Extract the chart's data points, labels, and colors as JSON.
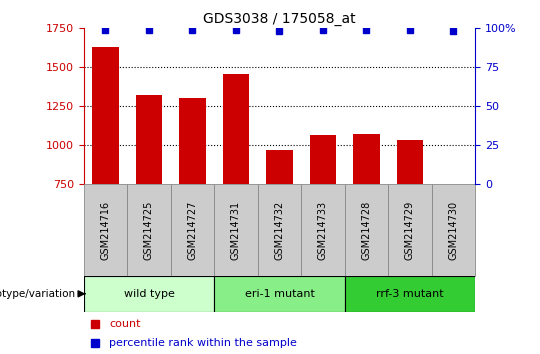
{
  "title": "GDS3038 / 175058_at",
  "samples": [
    "GSM214716",
    "GSM214725",
    "GSM214727",
    "GSM214731",
    "GSM214732",
    "GSM214733",
    "GSM214728",
    "GSM214729",
    "GSM214730"
  ],
  "counts": [
    1630,
    1320,
    1305,
    1455,
    970,
    1065,
    1070,
    1030,
    750
  ],
  "percentile_ranks": [
    99,
    99,
    99,
    99,
    98,
    99,
    99,
    99,
    98
  ],
  "groups": [
    {
      "label": "wild type",
      "start": 0,
      "end": 3,
      "color": "#ccffcc"
    },
    {
      "label": "eri-1 mutant",
      "start": 3,
      "end": 6,
      "color": "#88ee88"
    },
    {
      "label": "rrf-3 mutant",
      "start": 6,
      "end": 9,
      "color": "#33cc33"
    }
  ],
  "ylim": [
    750,
    1750
  ],
  "yticks": [
    750,
    1000,
    1250,
    1500,
    1750
  ],
  "right_yticks": [
    0,
    25,
    50,
    75,
    100
  ],
  "bar_color": "#cc0000",
  "dot_color": "#0000cc",
  "grid_color": "#000000",
  "tick_label_color_left": "#cc0000",
  "tick_label_color_right": "#0000cc",
  "title_color": "#000000",
  "legend_count_color": "#cc0000",
  "legend_pct_color": "#0000cc",
  "sample_box_color": "#cccccc",
  "sample_box_edge": "#888888",
  "genotype_label": "genotype/variation"
}
